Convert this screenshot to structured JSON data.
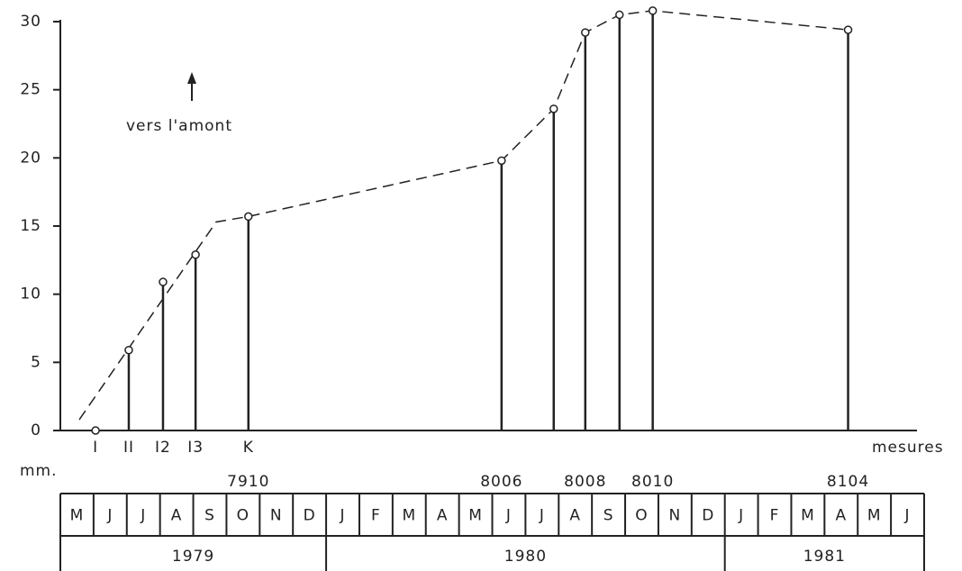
{
  "chart_data": {
    "type": "stem",
    "y_label": "mm.",
    "x_label": "mesures",
    "annotation": "vers l'amont",
    "ylim": [
      0,
      30
    ],
    "yticks": [
      0,
      5,
      10,
      15,
      20,
      25,
      30
    ],
    "xlim": [
      0,
      26
    ],
    "x": [
      1.06,
      2.06,
      3.09,
      4.07,
      5.66,
      13.28,
      14.85,
      15.8,
      16.83,
      17.83,
      23.71
    ],
    "values": [
      0,
      5.9,
      10.9,
      12.9,
      15.7,
      19.8,
      23.6,
      29.2,
      30.5,
      30.8,
      29.4
    ],
    "labels_upper": [
      "I",
      "II",
      "I2",
      "I3",
      "K",
      null,
      null,
      null,
      null,
      null,
      null
    ],
    "labels_lower": [
      null,
      null,
      null,
      null,
      "7910",
      "8006",
      null,
      "8008",
      null,
      "8010",
      "8104"
    ],
    "trend": {
      "x": [
        0.57,
        4.69,
        5.66,
        13.28,
        14.85,
        15.8,
        16.83,
        17.83,
        23.71
      ],
      "values": [
        0.8,
        15.3,
        15.7,
        19.8,
        23.6,
        29.2,
        30.5,
        30.8,
        29.4
      ]
    },
    "months": [
      "M",
      "J",
      "J",
      "A",
      "S",
      "O",
      "N",
      "D",
      "J",
      "F",
      "M",
      "A",
      "M",
      "J",
      "J",
      "A",
      "S",
      "O",
      "N",
      "D",
      "J",
      "F",
      "M",
      "A",
      "M",
      "J"
    ],
    "years": [
      "1979",
      "1980",
      "1981"
    ],
    "year_starts": [
      0,
      8,
      20
    ],
    "color": "#222"
  }
}
